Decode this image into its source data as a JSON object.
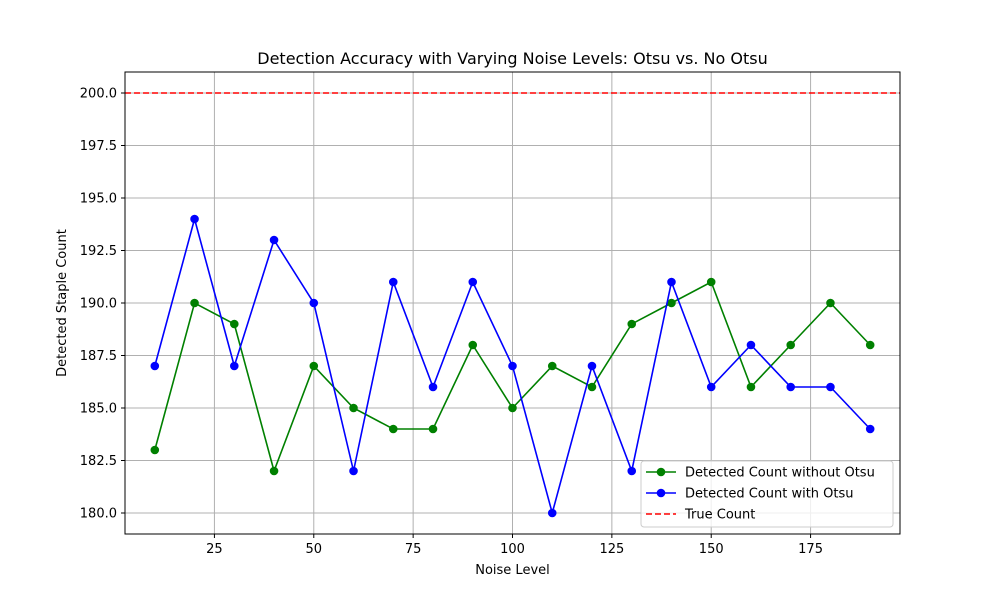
{
  "chart_data": {
    "type": "line",
    "title": "Detection Accuracy with Varying Noise Levels: Otsu vs. No Otsu",
    "xlabel": "Noise Level",
    "ylabel": "Detected Staple Count",
    "xlim": [
      2.5,
      197.5
    ],
    "ylim": [
      179.0,
      201.0
    ],
    "x_ticks": [
      25,
      50,
      75,
      100,
      125,
      150,
      175
    ],
    "y_ticks": [
      180.0,
      182.5,
      185.0,
      187.5,
      190.0,
      192.5,
      195.0,
      197.5,
      200.0
    ],
    "grid": true,
    "legend_position": "lower right",
    "x": [
      10,
      20,
      30,
      40,
      50,
      60,
      70,
      80,
      90,
      100,
      110,
      120,
      130,
      140,
      150,
      160,
      170,
      180,
      190
    ],
    "series": [
      {
        "name": "Detected Count without Otsu",
        "color": "#008000",
        "marker": "circle",
        "values": [
          183,
          190,
          189,
          182,
          187,
          185,
          184,
          184,
          188,
          185,
          187,
          186,
          189,
          190,
          191,
          186,
          188,
          190,
          188
        ]
      },
      {
        "name": "Detected Count with Otsu",
        "color": "#0000ff",
        "marker": "circle",
        "values": [
          187,
          194,
          187,
          193,
          190,
          182,
          191,
          186,
          191,
          187,
          180,
          187,
          182,
          191,
          186,
          188,
          186,
          186,
          184
        ]
      }
    ],
    "reference_lines": [
      {
        "name": "True Count",
        "value": 200,
        "color": "#ff0000",
        "style": "dashed"
      }
    ]
  }
}
